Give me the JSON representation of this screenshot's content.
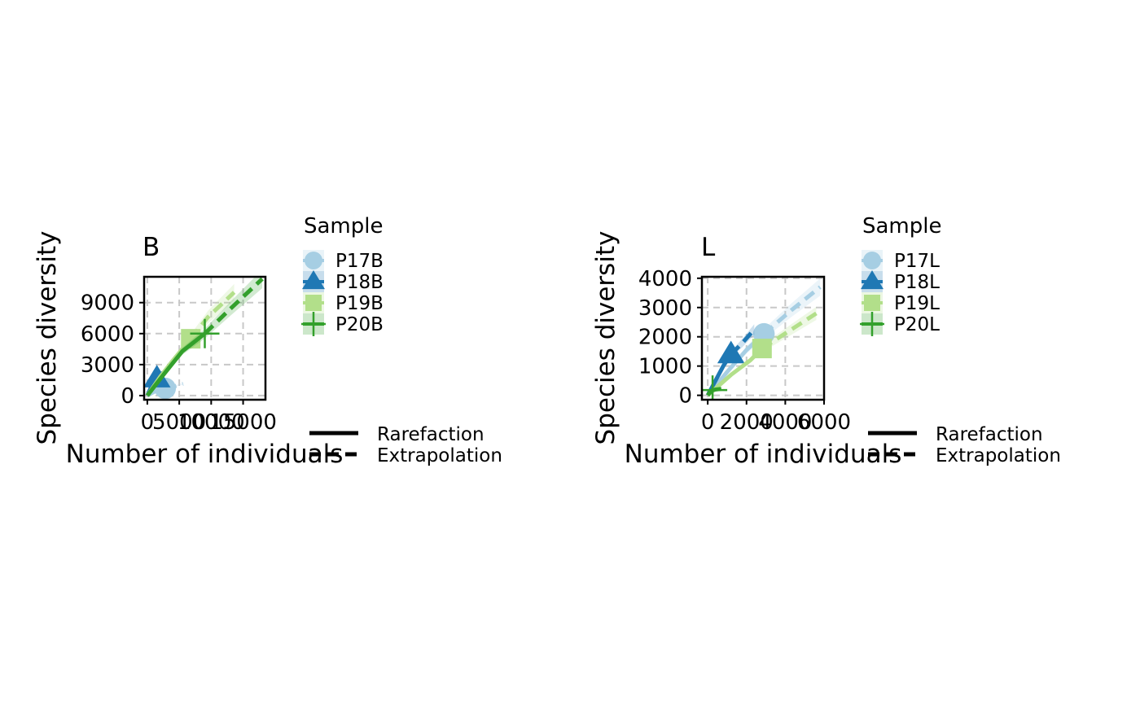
{
  "colors": {
    "P17": "#a6cee3",
    "P18": "#1f78b4",
    "P19": "#b2df8a",
    "P20": "#33a02c",
    "grid": "#c8c8c8",
    "frame": "#000000"
  },
  "shared": {
    "legend_title": "Sample",
    "method_legend": [
      "Rarefaction",
      "Extrapolation"
    ]
  },
  "chart_data": [
    {
      "type": "line",
      "title": "B",
      "xlabel": "Number of individuals",
      "ylabel": "Species diversity",
      "xlim": [
        -500,
        18500
      ],
      "ylim": [
        -400,
        11500
      ],
      "x_ticks": [
        0,
        5000,
        10000,
        15000
      ],
      "x_tick_labels": [
        "0",
        "5000",
        "10000",
        "15000"
      ],
      "y_ticks": [
        0,
        3000,
        6000,
        9000
      ],
      "y_tick_labels": [
        "0",
        "3000",
        "6000",
        "9000"
      ],
      "grid": true,
      "legend_position": "right",
      "series": [
        {
          "name": "P17B",
          "marker": "circle",
          "color": "#a6cee3",
          "rarefaction": [
            [
              0,
              0
            ],
            [
              1000,
              350
            ],
            [
              2000,
              550
            ],
            [
              2800,
              700
            ]
          ],
          "extrapolation": [
            [
              2800,
              700
            ],
            [
              4000,
              850
            ],
            [
              5600,
              1150
            ]
          ],
          "observed": [
            2800,
            700
          ]
        },
        {
          "name": "P18B",
          "marker": "triangle",
          "color": "#1f78b4",
          "rarefaction": [
            [
              0,
              0
            ],
            [
              500,
              700
            ],
            [
              1000,
              1250
            ],
            [
              1500,
              1650
            ]
          ],
          "extrapolation": [
            [
              1500,
              1650
            ],
            [
              2200,
              2100
            ],
            [
              3000,
              2400
            ]
          ],
          "observed": [
            1500,
            1650
          ]
        },
        {
          "name": "P19B",
          "marker": "square",
          "color": "#b2df8a",
          "rarefaction": [
            [
              0,
              0
            ],
            [
              2000,
              1800
            ],
            [
              4000,
              3400
            ],
            [
              6800,
              5500
            ]
          ],
          "extrapolation": [
            [
              6800,
              5500
            ],
            [
              9500,
              7600
            ],
            [
              13600,
              10000
            ]
          ],
          "observed": [
            6800,
            5500
          ]
        },
        {
          "name": "P20B",
          "marker": "plus",
          "color": "#33a02c",
          "rarefaction": [
            [
              0,
              0
            ],
            [
              2500,
              2000
            ],
            [
              5500,
              4300
            ],
            [
              9000,
              6000
            ]
          ],
          "extrapolation": [
            [
              9000,
              6000
            ],
            [
              13000,
              8400
            ],
            [
              18000,
              11300
            ]
          ],
          "observed": [
            9000,
            6000
          ]
        }
      ]
    },
    {
      "type": "line",
      "title": "L",
      "xlabel": "Number of individuals",
      "ylabel": "Species diversity",
      "xlim": [
        -300,
        6000
      ],
      "ylim": [
        -150,
        4050
      ],
      "x_ticks": [
        0,
        2000,
        4000,
        6000
      ],
      "x_tick_labels": [
        "0",
        "2000",
        "4000",
        "6000"
      ],
      "y_ticks": [
        0,
        1000,
        2000,
        3000,
        4000
      ],
      "y_tick_labels": [
        "0",
        "1000",
        "2000",
        "3000",
        "4000"
      ],
      "grid": true,
      "legend_position": "right",
      "series": [
        {
          "name": "P17L",
          "marker": "circle",
          "color": "#a6cee3",
          "rarefaction": [
            [
              0,
              0
            ],
            [
              1000,
              800
            ],
            [
              2000,
              1550
            ],
            [
              2900,
              2100
            ]
          ],
          "extrapolation": [
            [
              2900,
              2100
            ],
            [
              4300,
              2900
            ],
            [
              5800,
              3700
            ]
          ],
          "observed": [
            2900,
            2100
          ]
        },
        {
          "name": "P18L",
          "marker": "triangle",
          "color": "#1f78b4",
          "rarefaction": [
            [
              0,
              0
            ],
            [
              400,
              500
            ],
            [
              800,
              1000
            ],
            [
              1200,
              1400
            ]
          ],
          "extrapolation": [
            [
              1200,
              1400
            ],
            [
              1800,
              1800
            ],
            [
              2400,
              2250
            ]
          ],
          "observed": [
            1200,
            1400
          ]
        },
        {
          "name": "P19L",
          "marker": "square",
          "color": "#b2df8a",
          "rarefaction": [
            [
              0,
              0
            ],
            [
              1200,
              700
            ],
            [
              2200,
              1200
            ],
            [
              2800,
              1600
            ]
          ],
          "extrapolation": [
            [
              2800,
              1600
            ],
            [
              4200,
              2200
            ],
            [
              5600,
              2800
            ]
          ],
          "observed": [
            2800,
            1600
          ]
        },
        {
          "name": "P20L",
          "marker": "plus",
          "color": "#33a02c",
          "rarefaction": [
            [
              0,
              0
            ],
            [
              100,
              90
            ],
            [
              250,
              180
            ]
          ],
          "extrapolation": [
            [
              250,
              180
            ],
            [
              420,
              200
            ],
            [
              700,
              220
            ]
          ],
          "observed": [
            250,
            180
          ]
        }
      ]
    }
  ]
}
